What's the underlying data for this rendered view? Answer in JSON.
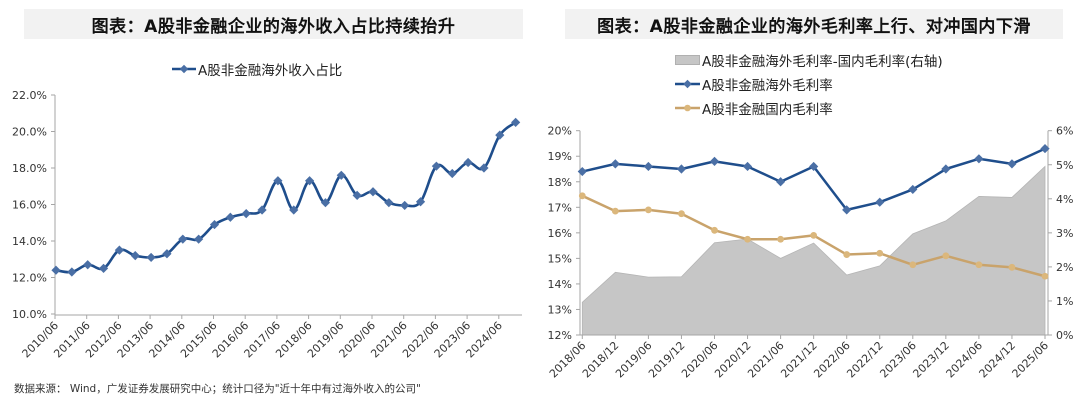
{
  "left_chart": {
    "title": "图表：A股非金融企业的海外收入占比持续抬升",
    "legend": "A股非金融海外收入占比"
  },
  "right_chart": {
    "title": "图表：A股非金融企业的海外毛利率上行、对冲国内下滑",
    "legend": [
      "A股非金融海外毛利率-国内毛利率(右轴)",
      "A股非金融海外毛利率",
      "A股非金融国内毛利率"
    ]
  },
  "footer": "数据来源： Wind，广发证券发展研究中心；统计口径为\"近十年中有过海外收入的公司\"",
  "colors": {
    "blue": "#1f4e8c",
    "marker_blue": "#4a6fa5",
    "gold": "#c9a36b",
    "marker_gold": "#dbb77c",
    "area": "#c6c6c6",
    "axis": "#a6a6a6",
    "title_bg": "#f2f2f2"
  },
  "chart_data": [
    {
      "type": "line",
      "title": "图表：A股非金融企业的海外收入占比持续抬升",
      "xlabel": "",
      "ylabel": "",
      "ylim": [
        10,
        22
      ],
      "yticks": [
        "10.0%",
        "12.0%",
        "14.0%",
        "16.0%",
        "18.0%",
        "20.0%",
        "22.0%"
      ],
      "xtick_labels": [
        "2010/06",
        "2011/06",
        "2012/06",
        "2013/06",
        "2014/06",
        "2015/06",
        "2016/06",
        "2017/06",
        "2018/06",
        "2019/06",
        "2020/06",
        "2021/06",
        "2022/06",
        "2023/06",
        "2024/06"
      ],
      "x": [
        "2010/06",
        "2010/12",
        "2011/06",
        "2011/12",
        "2012/06",
        "2012/12",
        "2013/06",
        "2013/12",
        "2014/06",
        "2014/12",
        "2015/06",
        "2015/12",
        "2016/06",
        "2016/12",
        "2017/06",
        "2017/12",
        "2018/06",
        "2018/12",
        "2019/06",
        "2019/12",
        "2020/06",
        "2020/12",
        "2021/06",
        "2021/12",
        "2022/06",
        "2022/12",
        "2023/06",
        "2023/12",
        "2024/06",
        "2024/12"
      ],
      "series": [
        {
          "name": "A股非金融海外收入占比",
          "unit": "%",
          "values": [
            12.4,
            12.3,
            12.7,
            12.5,
            13.5,
            13.2,
            13.1,
            13.3,
            14.1,
            14.1,
            14.9,
            15.3,
            15.5,
            15.7,
            17.3,
            15.7,
            17.3,
            16.1,
            17.6,
            16.5,
            16.7,
            16.1,
            15.95,
            16.15,
            18.1,
            17.7,
            18.3,
            18.0,
            19.8,
            20.5
          ]
        }
      ],
      "grid": false,
      "legend_position": "top"
    },
    {
      "type": "line",
      "title": "图表：A股非金融企业的海外毛利率上行、对冲国内下滑",
      "xlabel": "",
      "ylabel": "",
      "ylim": [
        12,
        20
      ],
      "y2lim": [
        0,
        6
      ],
      "yticks": [
        "12%",
        "13%",
        "14%",
        "15%",
        "16%",
        "17%",
        "18%",
        "19%",
        "20%"
      ],
      "y2ticks": [
        "0%",
        "1%",
        "2%",
        "3%",
        "4%",
        "5%",
        "6%"
      ],
      "x": [
        "2018/06",
        "2018/12",
        "2019/06",
        "2019/12",
        "2020/06",
        "2020/12",
        "2021/06",
        "2021/12",
        "2022/06",
        "2022/12",
        "2023/06",
        "2023/12",
        "2024/06",
        "2024/12",
        "2025/06"
      ],
      "series": [
        {
          "name": "A股非金融海外毛利率-国内毛利率(右轴)",
          "type": "area",
          "axis": "right",
          "unit": "%",
          "values": [
            0.96,
            1.84,
            1.7,
            1.71,
            2.71,
            2.82,
            2.25,
            2.7,
            1.76,
            2.03,
            2.97,
            3.35,
            4.07,
            4.04,
            4.95
          ]
        },
        {
          "name": "A股非金融海外毛利率",
          "type": "line",
          "axis": "left",
          "unit": "%",
          "values": [
            18.4,
            18.7,
            18.6,
            18.5,
            18.8,
            18.6,
            18.0,
            18.6,
            16.9,
            17.2,
            17.7,
            18.5,
            18.9,
            18.7,
            19.3
          ]
        },
        {
          "name": "A股非金融国内毛利率",
          "type": "line",
          "axis": "left",
          "unit": "%",
          "values": [
            17.45,
            16.85,
            16.9,
            16.75,
            16.1,
            15.75,
            15.75,
            15.9,
            15.15,
            15.2,
            14.75,
            15.1,
            14.75,
            14.65,
            14.3
          ]
        }
      ],
      "grid": false,
      "legend_position": "top"
    }
  ]
}
